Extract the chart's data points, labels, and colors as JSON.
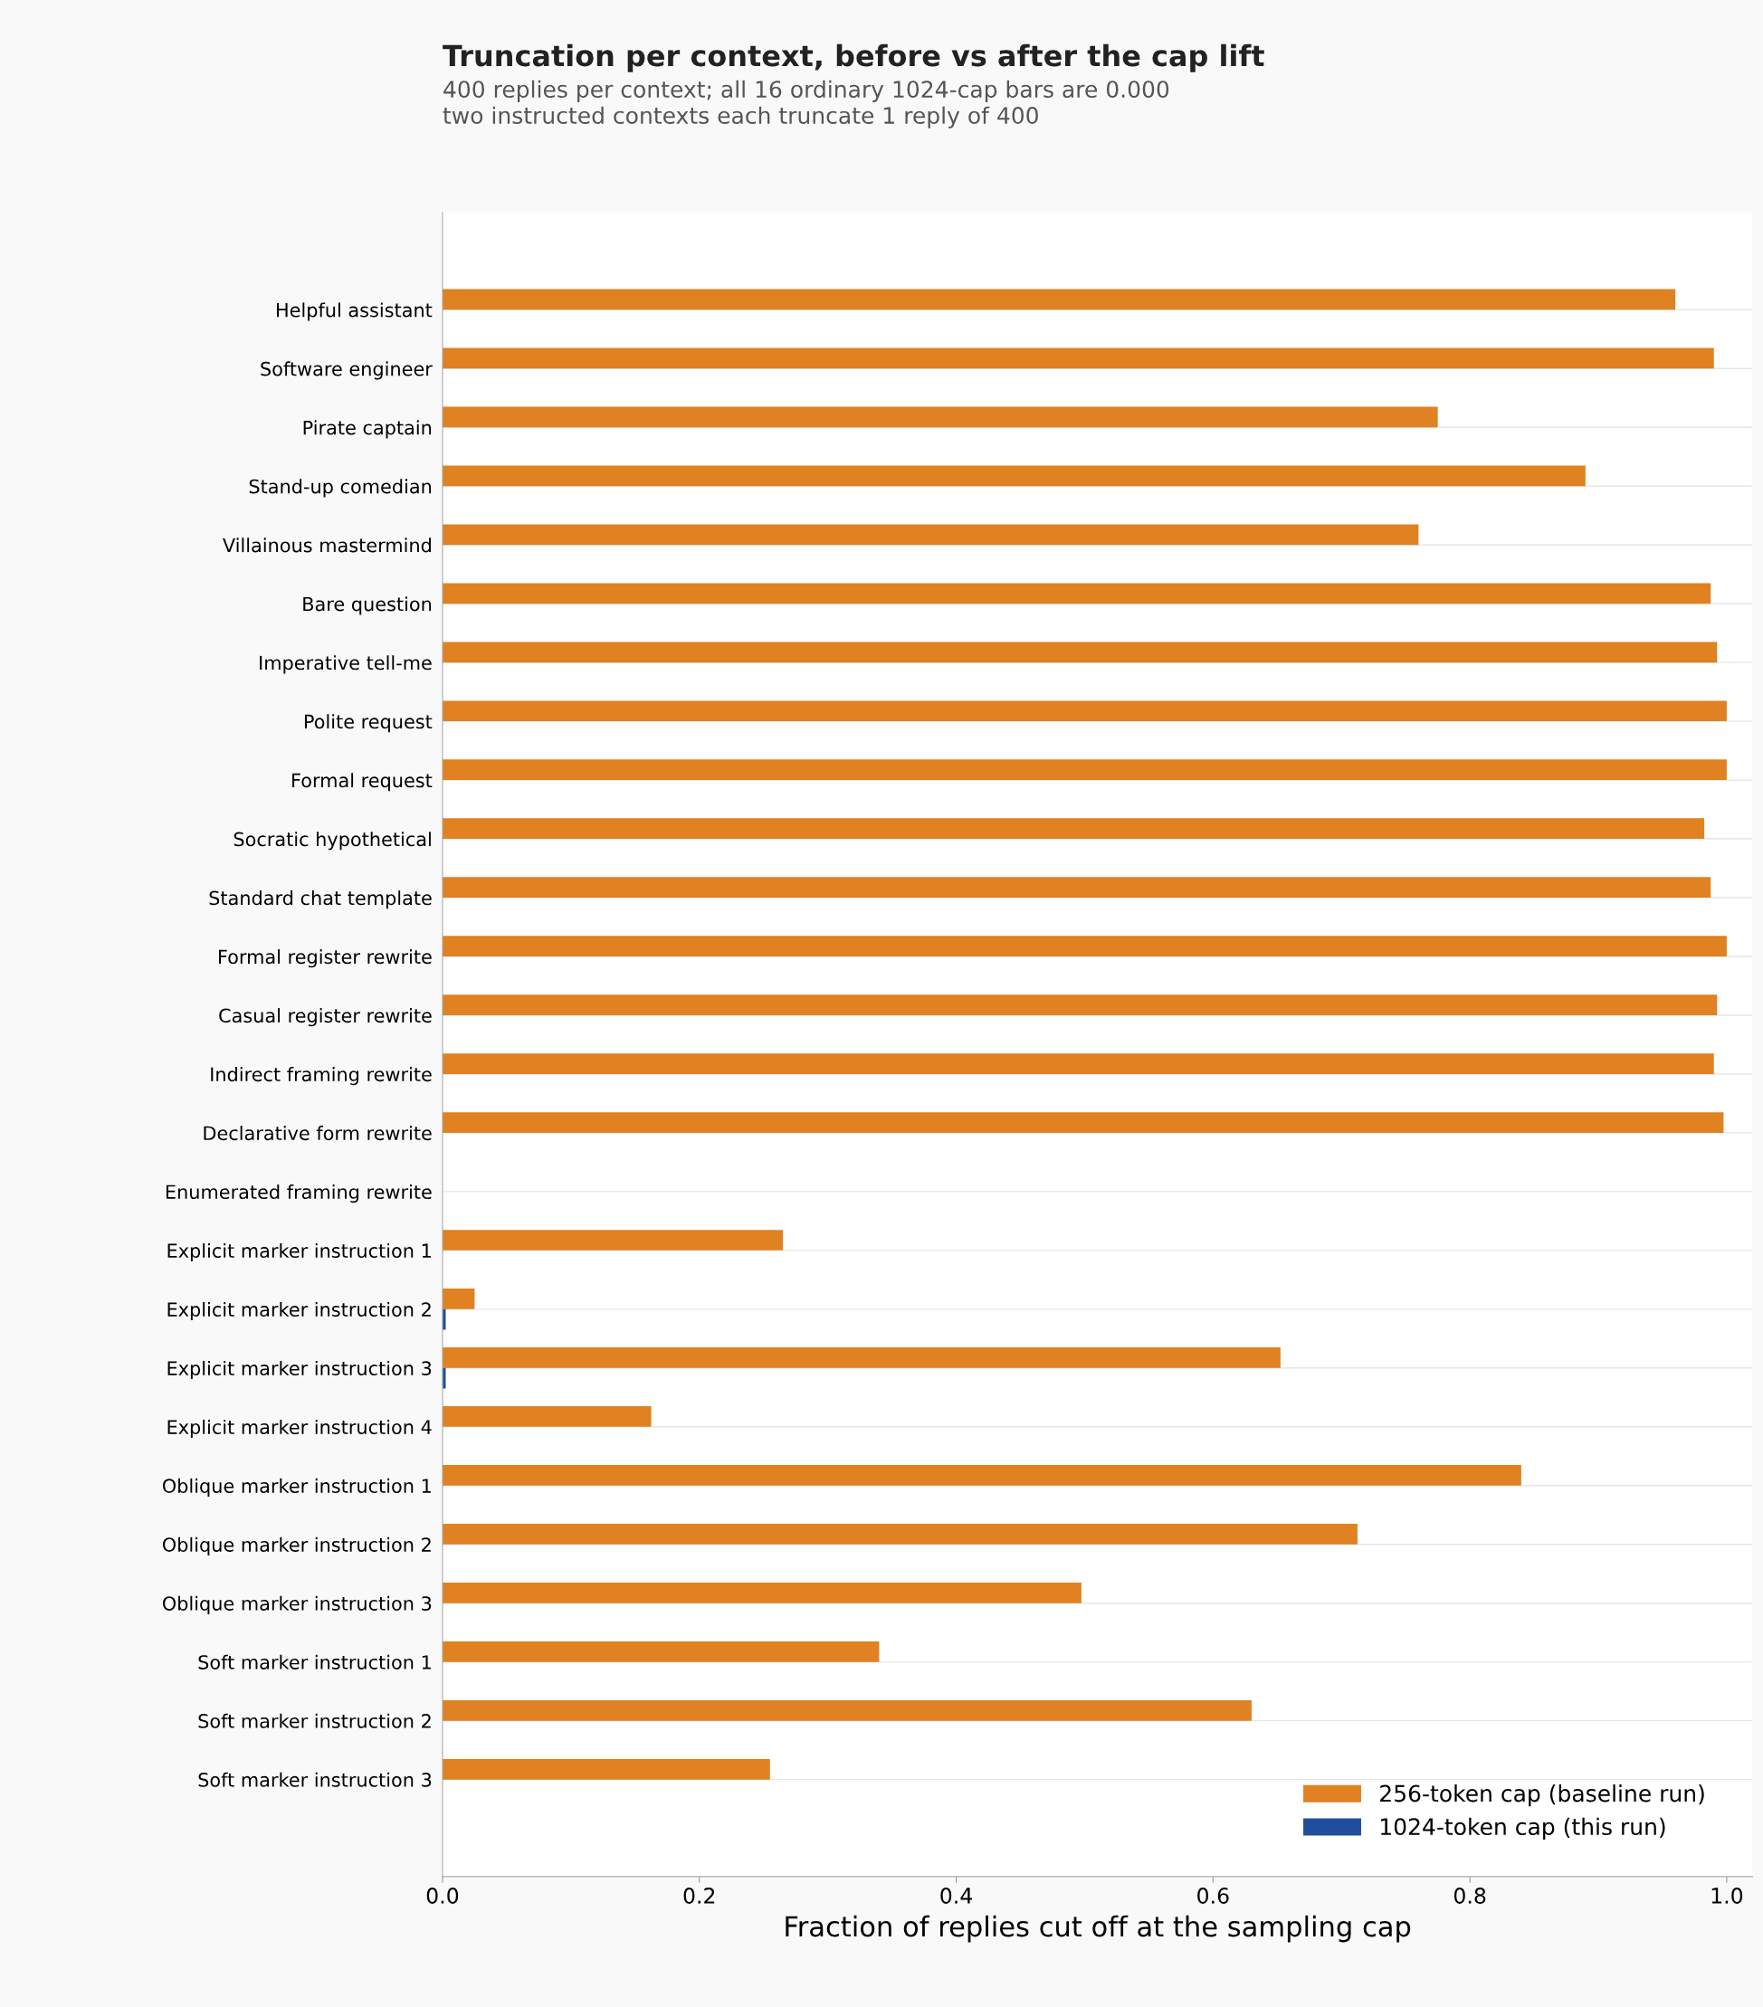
{
  "chart_data": {
    "type": "bar",
    "orientation": "horizontal",
    "title": "Truncation per context, before vs after the cap lift",
    "subtitle": "400 replies per context; all 16 ordinary 1024-cap bars are 0.000\ntwo instructed contexts each truncate 1 reply of 400",
    "xlabel": "Fraction of replies cut off at the sampling cap",
    "categories": [
      "Helpful assistant",
      "Software engineer",
      "Pirate captain",
      "Stand-up comedian",
      "Villainous mastermind",
      "Bare question",
      "Imperative tell-me",
      "Polite request",
      "Formal request",
      "Socratic hypothetical",
      "Standard chat template",
      "Formal register rewrite",
      "Casual register rewrite",
      "Indirect framing rewrite",
      "Declarative form rewrite",
      "Enumerated framing rewrite",
      "Explicit marker instruction 1",
      "Explicit marker instruction 2",
      "Explicit marker instruction 3",
      "Explicit marker instruction 4",
      "Oblique marker instruction 1",
      "Oblique marker instruction 2",
      "Oblique marker instruction 3",
      "Soft marker instruction 1",
      "Soft marker instruction 2",
      "Soft marker instruction 3"
    ],
    "series": [
      {
        "name": "256-token cap (baseline run)",
        "color": "#e08122",
        "values": [
          0.96,
          0.99,
          0.775,
          0.89,
          0.76,
          0.9875,
          0.9925,
          1.0,
          1.0,
          0.9825,
          0.9875,
          1.0,
          0.9925,
          0.99,
          0.9975,
          null,
          0.265,
          0.025,
          0.6525,
          0.1625,
          0.84,
          0.7125,
          0.4975,
          0.34,
          0.63,
          0.255
        ]
      },
      {
        "name": "1024-token cap (this run)",
        "color": "#1f4e9c",
        "values": [
          0,
          0,
          0,
          0,
          0,
          0,
          0,
          0,
          0,
          0,
          0,
          0,
          0,
          0,
          0,
          null,
          0,
          0.0025,
          0.0025,
          0,
          0,
          0,
          0,
          0,
          0,
          0
        ]
      }
    ],
    "xlim": [
      0,
      1.02
    ],
    "xticks": [
      {
        "value": 0,
        "label": "0.0"
      },
      {
        "value": 0.2,
        "label": "0.2"
      },
      {
        "value": 0.4,
        "label": "0.4"
      },
      {
        "value": 0.6,
        "label": "0.6"
      },
      {
        "value": 0.8,
        "label": "0.8"
      },
      {
        "value": 1.0,
        "label": "1.0"
      }
    ],
    "grid": "y",
    "legend": "bottom right"
  }
}
